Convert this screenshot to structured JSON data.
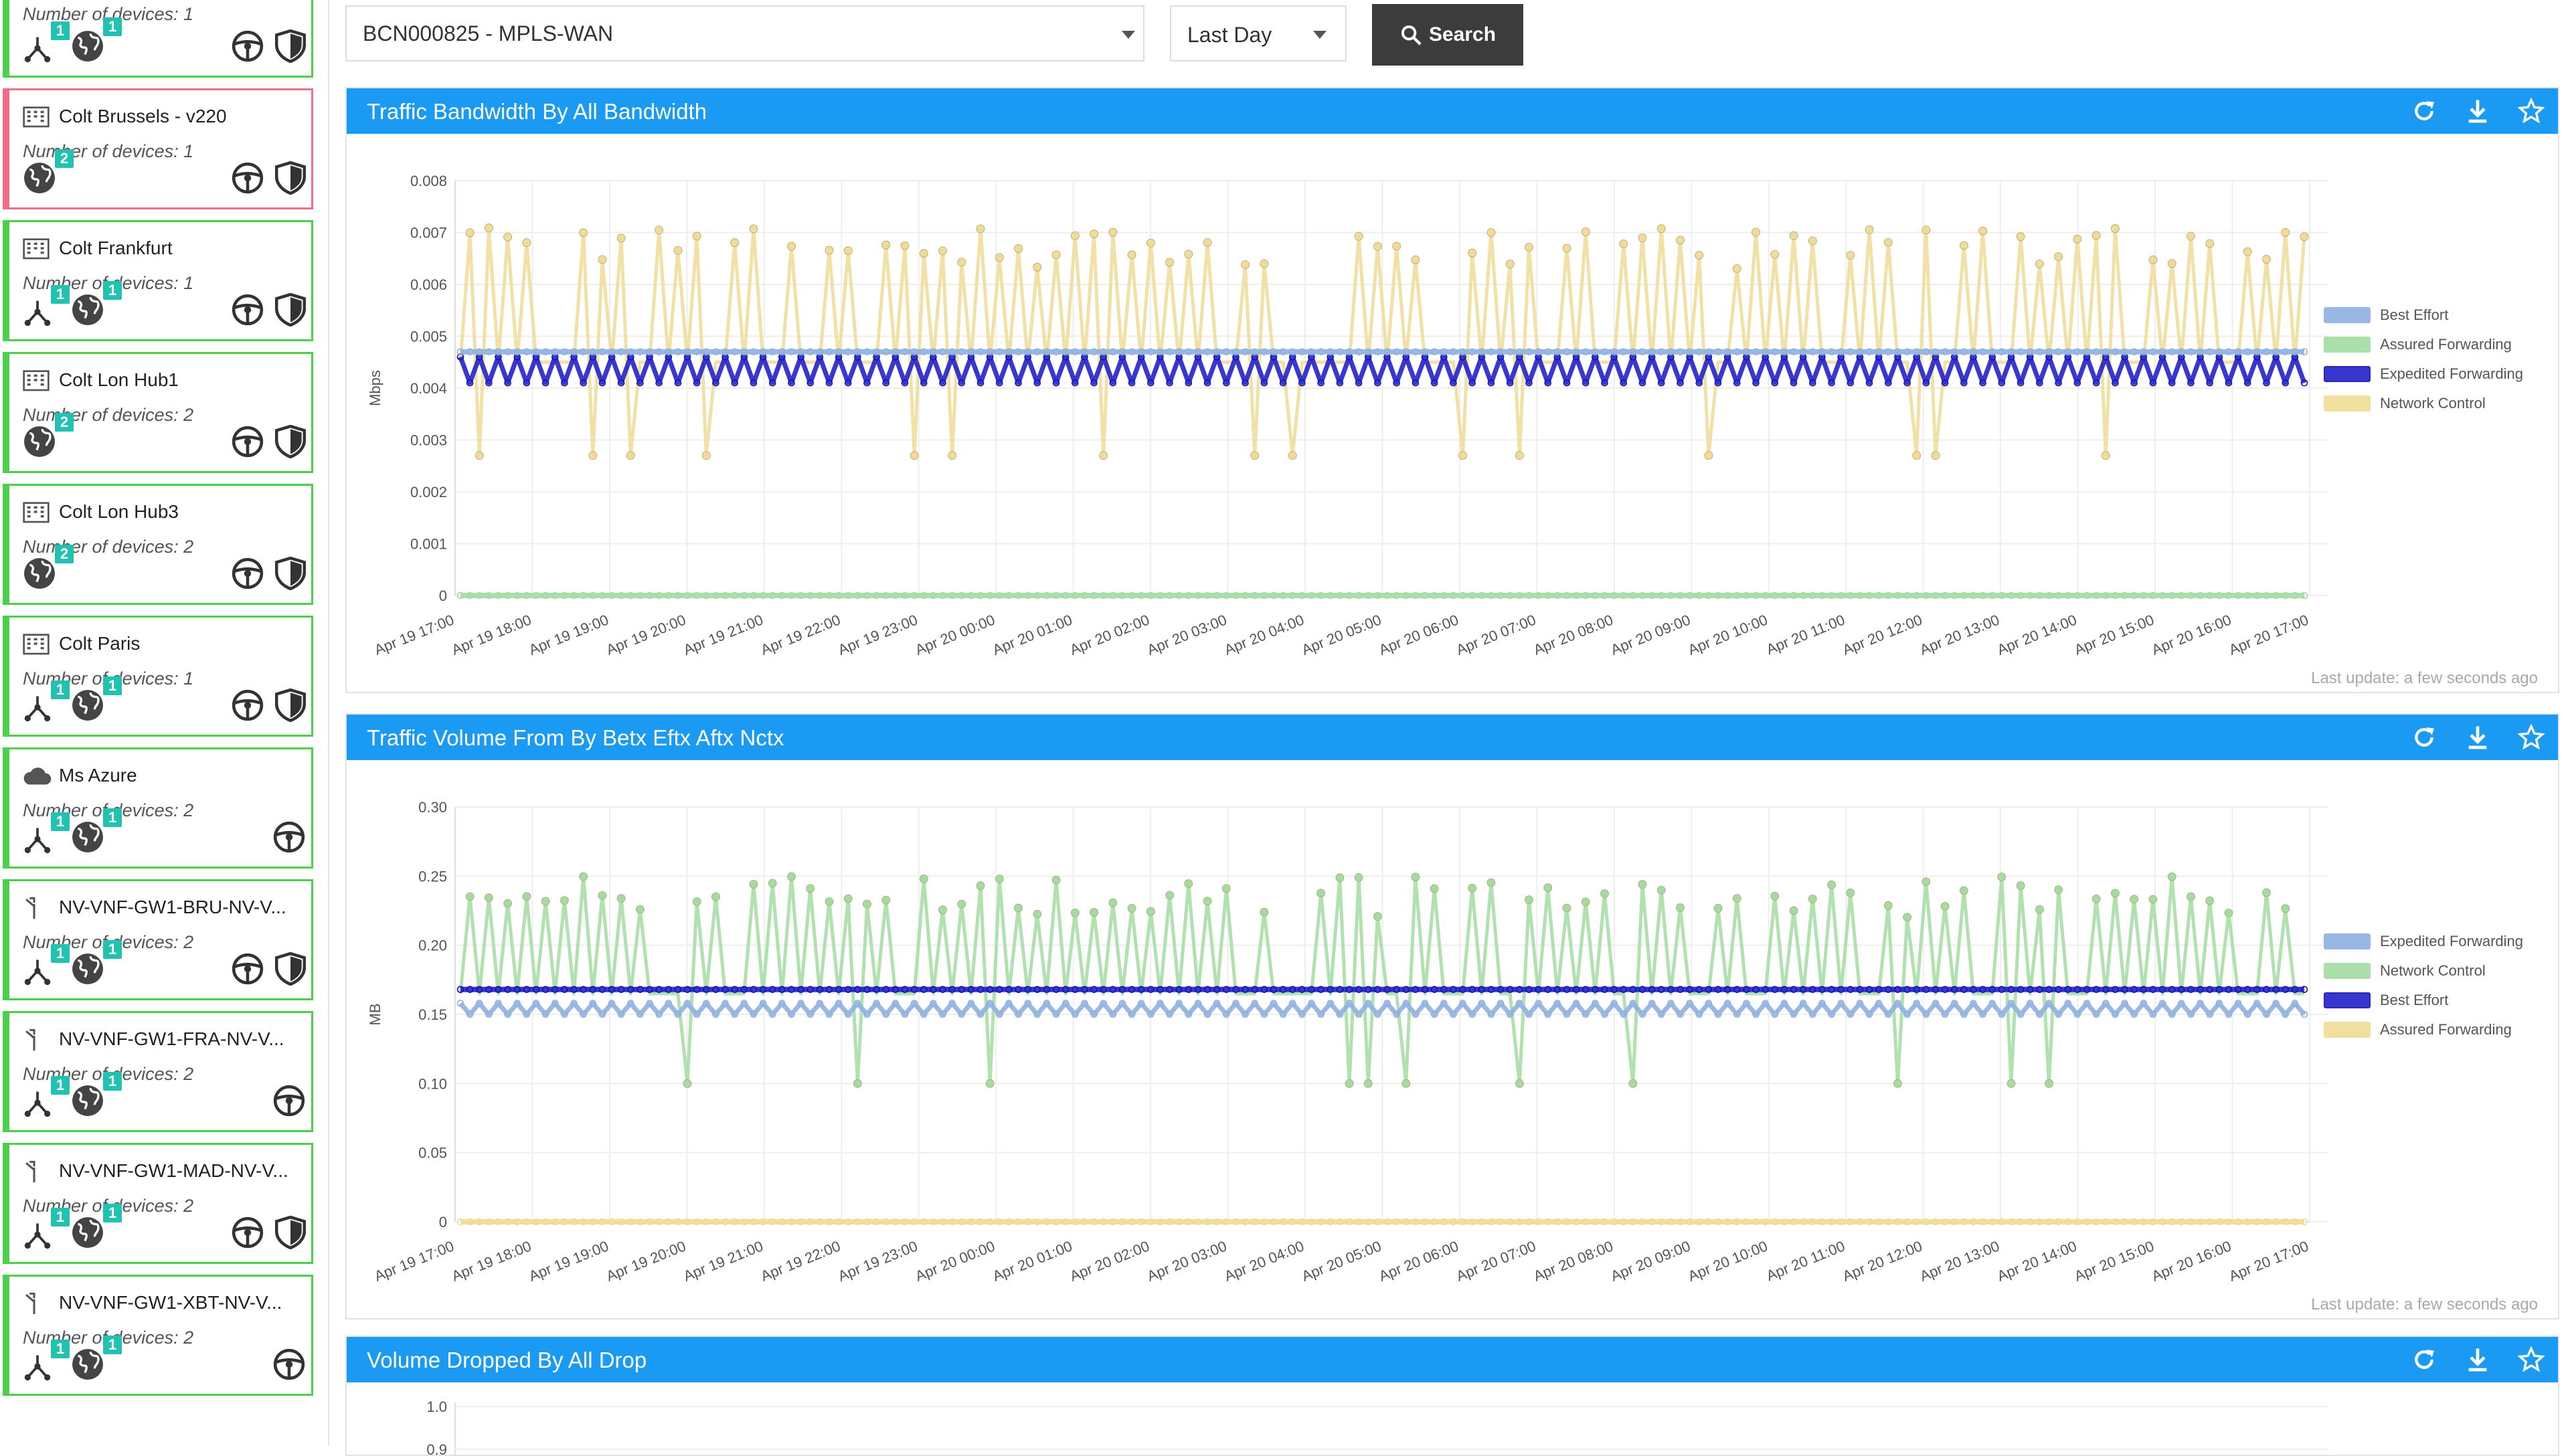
{
  "sites": [
    {
      "name": "",
      "devices_label": "Number of devices: 1",
      "icon": "building-icon",
      "status": "ok",
      "badges": [
        {
          "type": "router",
          "count": "1"
        },
        {
          "type": "globe",
          "count": "1"
        }
      ],
      "actions": [
        "steering-wheel-icon",
        "shield-icon"
      ]
    },
    {
      "name": "Colt Brussels - v220",
      "devices_label": "Number of devices: 1",
      "icon": "building-icon",
      "status": "alert",
      "badges": [
        {
          "type": "globe",
          "count": "2"
        }
      ],
      "actions": [
        "steering-wheel-icon",
        "shield-icon"
      ]
    },
    {
      "name": "Colt Frankfurt",
      "devices_label": "Number of devices: 1",
      "icon": "building-icon",
      "status": "ok",
      "badges": [
        {
          "type": "router",
          "count": "1"
        },
        {
          "type": "globe",
          "count": "1"
        }
      ],
      "actions": [
        "steering-wheel-icon",
        "shield-icon"
      ]
    },
    {
      "name": "Colt Lon Hub1",
      "devices_label": "Number of devices: 2",
      "icon": "building-icon",
      "status": "ok",
      "badges": [
        {
          "type": "globe",
          "count": "2"
        }
      ],
      "actions": [
        "steering-wheel-icon",
        "shield-icon"
      ]
    },
    {
      "name": "Colt Lon Hub3",
      "devices_label": "Number of devices: 2",
      "icon": "building-icon",
      "status": "ok",
      "badges": [
        {
          "type": "globe",
          "count": "2"
        }
      ],
      "actions": [
        "steering-wheel-icon",
        "shield-icon"
      ]
    },
    {
      "name": "Colt Paris",
      "devices_label": "Number of devices: 1",
      "icon": "building-icon",
      "status": "ok",
      "badges": [
        {
          "type": "router",
          "count": "1"
        },
        {
          "type": "globe",
          "count": "1"
        }
      ],
      "actions": [
        "steering-wheel-icon",
        "shield-icon"
      ]
    },
    {
      "name": "Ms Azure",
      "devices_label": "Number of devices: 2",
      "icon": "cloud-icon",
      "status": "ok",
      "badges": [
        {
          "type": "router",
          "count": "1"
        },
        {
          "type": "globe",
          "count": "1"
        }
      ],
      "actions": [
        "steering-wheel-icon"
      ]
    },
    {
      "name": "NV-VNF-GW1-BRU-NV-V...",
      "devices_label": "Number of devices: 2",
      "icon": "fork-icon",
      "status": "ok",
      "badges": [
        {
          "type": "router",
          "count": "1"
        },
        {
          "type": "globe",
          "count": "1"
        }
      ],
      "actions": [
        "steering-wheel-icon",
        "shield-icon"
      ]
    },
    {
      "name": "NV-VNF-GW1-FRA-NV-V...",
      "devices_label": "Number of devices: 2",
      "icon": "fork-icon",
      "status": "ok",
      "badges": [
        {
          "type": "router",
          "count": "1"
        },
        {
          "type": "globe",
          "count": "1"
        }
      ],
      "actions": [
        "steering-wheel-icon"
      ]
    },
    {
      "name": "NV-VNF-GW1-MAD-NV-V...",
      "devices_label": "Number of devices: 2",
      "icon": "fork-icon",
      "status": "ok",
      "badges": [
        {
          "type": "router",
          "count": "1"
        },
        {
          "type": "globe",
          "count": "1"
        }
      ],
      "actions": [
        "steering-wheel-icon",
        "shield-icon"
      ]
    },
    {
      "name": "NV-VNF-GW1-XBT-NV-V...",
      "devices_label": "Number of devices: 2",
      "icon": "fork-icon",
      "status": "ok",
      "badges": [
        {
          "type": "router",
          "count": "1"
        },
        {
          "type": "globe",
          "count": "1"
        }
      ],
      "actions": [
        "steering-wheel-icon"
      ]
    }
  ],
  "toolbar": {
    "device_value": "BCN000825 - MPLS-WAN",
    "period_value": "Last Day",
    "search_label": "Search"
  },
  "panels": [
    {
      "title": "Traffic Bandwidth By All Bandwidth",
      "footer": "Last update: a few seconds ago"
    },
    {
      "title": "Traffic Volume From By Betx Eftx Aftx Nctx",
      "footer": "Last update: a few seconds ago"
    },
    {
      "title": "Volume Dropped By All Drop",
      "footer": ""
    }
  ],
  "colors": {
    "header_blue": "#1a9af2",
    "ok_green": "#4cd04c",
    "alert_pink": "#f06d86",
    "badge_teal": "#22c2b2",
    "best_effort": "#8fb0e0",
    "assured_forwarding": "#a3dca0",
    "expedited_forwarding": "#2222cc",
    "network_control": "#f0dc96"
  },
  "chart_data": [
    {
      "type": "line",
      "title": "Traffic Bandwidth By All Bandwidth",
      "ylabel": "Mbps",
      "xlabel": "",
      "ylim": [
        0,
        0.008
      ],
      "yticks": [
        "0",
        "0.001",
        "0.002",
        "0.003",
        "0.004",
        "0.005",
        "0.006",
        "0.007",
        "0.008"
      ],
      "xticks": [
        "Apr 19 17:00",
        "Apr 19 18:00",
        "Apr 19 19:00",
        "Apr 19 20:00",
        "Apr 19 21:00",
        "Apr 19 22:00",
        "Apr 19 23:00",
        "Apr 20 00:00",
        "Apr 20 01:00",
        "Apr 20 02:00",
        "Apr 20 03:00",
        "Apr 20 04:00",
        "Apr 20 05:00",
        "Apr 20 06:00",
        "Apr 20 07:00",
        "Apr 20 08:00",
        "Apr 20 09:00",
        "Apr 20 10:00",
        "Apr 20 11:00",
        "Apr 20 12:00",
        "Apr 20 13:00",
        "Apr 20 14:00",
        "Apr 20 15:00",
        "Apr 20 16:00",
        "Apr 20 17:00"
      ],
      "legend_position": "right",
      "grid": true,
      "series": [
        {
          "name": "Best Effort",
          "pattern": "flat",
          "level": 0.0047,
          "color": "#8fb0e0"
        },
        {
          "name": "Assured Forwarding",
          "pattern": "flat",
          "level": 0.0,
          "color": "#a3dca0"
        },
        {
          "name": "Expedited Forwarding",
          "pattern": "oscillating",
          "low": 0.0041,
          "high": 0.0046,
          "color": "#2222cc"
        },
        {
          "name": "Network Control",
          "pattern": "spiky",
          "base": 0.0045,
          "peak_range": [
            0.0063,
            0.0071
          ],
          "dip": 0.0027,
          "color": "#f0dc96"
        }
      ]
    },
    {
      "type": "line",
      "title": "Traffic Volume From By Betx Eftx Aftx Nctx",
      "ylabel": "MB",
      "xlabel": "",
      "ylim": [
        0,
        0.3
      ],
      "yticks": [
        "0",
        "0.05",
        "0.10",
        "0.15",
        "0.20",
        "0.25",
        "0.30"
      ],
      "xticks": [
        "Apr 19 17:00",
        "Apr 19 18:00",
        "Apr 19 19:00",
        "Apr 19 20:00",
        "Apr 19 21:00",
        "Apr 19 22:00",
        "Apr 19 23:00",
        "Apr 20 00:00",
        "Apr 20 01:00",
        "Apr 20 02:00",
        "Apr 20 03:00",
        "Apr 20 04:00",
        "Apr 20 05:00",
        "Apr 20 06:00",
        "Apr 20 07:00",
        "Apr 20 08:00",
        "Apr 20 09:00",
        "Apr 20 10:00",
        "Apr 20 11:00",
        "Apr 20 12:00",
        "Apr 20 13:00",
        "Apr 20 14:00",
        "Apr 20 15:00",
        "Apr 20 16:00",
        "Apr 20 17:00"
      ],
      "legend_position": "right",
      "grid": true,
      "series": [
        {
          "name": "Expedited Forwarding",
          "pattern": "oscillating",
          "low": 0.15,
          "high": 0.158,
          "color": "#8fb0e0"
        },
        {
          "name": "Network Control",
          "pattern": "spiky",
          "base": 0.165,
          "peak_range": [
            0.22,
            0.25
          ],
          "dip": 0.1,
          "color": "#a3dca0"
        },
        {
          "name": "Best Effort",
          "pattern": "flat",
          "level": 0.168,
          "color": "#2222cc"
        },
        {
          "name": "Assured Forwarding",
          "pattern": "flat",
          "level": 0.0,
          "color": "#f0dc96"
        }
      ]
    },
    {
      "type": "line",
      "title": "Volume Dropped By All Drop",
      "ylim": [
        0,
        1.0
      ],
      "yticks": [
        "0.9",
        "1.0"
      ],
      "series": []
    }
  ]
}
